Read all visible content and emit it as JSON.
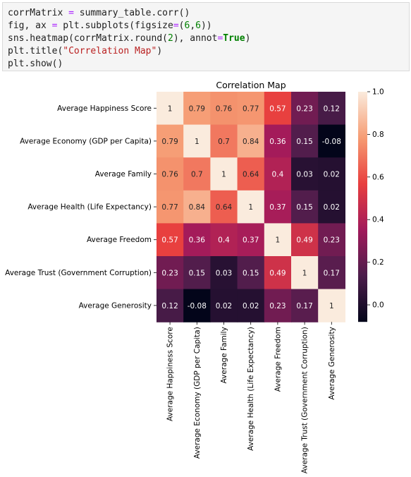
{
  "code_cell": {
    "lines": [
      [
        {
          "t": "corrMatrix ",
          "c": "plain"
        },
        {
          "t": "=",
          "c": "op"
        },
        {
          "t": " summary_table.corr()",
          "c": "plain"
        }
      ],
      [
        {
          "t": "fig, ax ",
          "c": "plain"
        },
        {
          "t": "=",
          "c": "op"
        },
        {
          "t": " plt.subplots(figsize",
          "c": "plain"
        },
        {
          "t": "=",
          "c": "op"
        },
        {
          "t": "(",
          "c": "plain"
        },
        {
          "t": "6",
          "c": "num"
        },
        {
          "t": ",",
          "c": "plain"
        },
        {
          "t": "6",
          "c": "num"
        },
        {
          "t": "))",
          "c": "plain"
        }
      ],
      [
        {
          "t": "sns.heatmap(corrMatrix.round(",
          "c": "plain"
        },
        {
          "t": "2",
          "c": "num"
        },
        {
          "t": "), annot",
          "c": "plain"
        },
        {
          "t": "=",
          "c": "op"
        },
        {
          "t": "True",
          "c": "kw"
        },
        {
          "t": ")",
          "c": "plain"
        }
      ],
      [
        {
          "t": "plt.title(",
          "c": "plain"
        },
        {
          "t": "\"Correlation Map\"",
          "c": "str"
        },
        {
          "t": ")",
          "c": "plain"
        }
      ],
      [
        {
          "t": "plt.show()",
          "c": "plain"
        }
      ]
    ]
  },
  "chart_data": {
    "type": "heatmap",
    "title": "Correlation Map",
    "row_labels": [
      "Average Happiness Score",
      "Average Economy (GDP per Capita)",
      "Average Family",
      "Average Health (Life Expectancy)",
      "Average Freedom",
      "Average Trust (Government Corruption)",
      "Average Generosity"
    ],
    "col_labels": [
      "Average Happiness Score",
      "Average Economy (GDP per Capita)",
      "Average Family",
      "Average Health (Life Expectancy)",
      "Average Freedom",
      "Average Trust (Government Corruption)",
      "Average Generosity"
    ],
    "values": [
      [
        1,
        0.79,
        0.76,
        0.77,
        0.57,
        0.23,
        0.12
      ],
      [
        0.79,
        1,
        0.7,
        0.84,
        0.36,
        0.15,
        -0.08
      ],
      [
        0.76,
        0.7,
        1,
        0.64,
        0.4,
        0.03,
        0.02
      ],
      [
        0.77,
        0.84,
        0.64,
        1,
        0.37,
        0.15,
        0.02
      ],
      [
        0.57,
        0.36,
        0.4,
        0.37,
        1,
        0.49,
        0.23
      ],
      [
        0.23,
        0.15,
        0.03,
        0.15,
        0.49,
        1,
        0.17
      ],
      [
        0.12,
        -0.08,
        0.02,
        0.02,
        0.23,
        0.17,
        1
      ]
    ],
    "colorbar": {
      "colormap": "rocket",
      "range": [
        -0.08,
        1
      ],
      "ticks": [
        0.0,
        0.2,
        0.4,
        0.6,
        0.8,
        1.0
      ],
      "tick_labels": [
        "0.0",
        "0.2",
        "0.4",
        "0.6",
        "0.8",
        "1.0"
      ],
      "colors": [
        "#03051a",
        "#4c1d4b",
        "#a11a5b",
        "#e83f3f",
        "#f69c73",
        "#faebdd"
      ]
    },
    "annotations": true
  }
}
